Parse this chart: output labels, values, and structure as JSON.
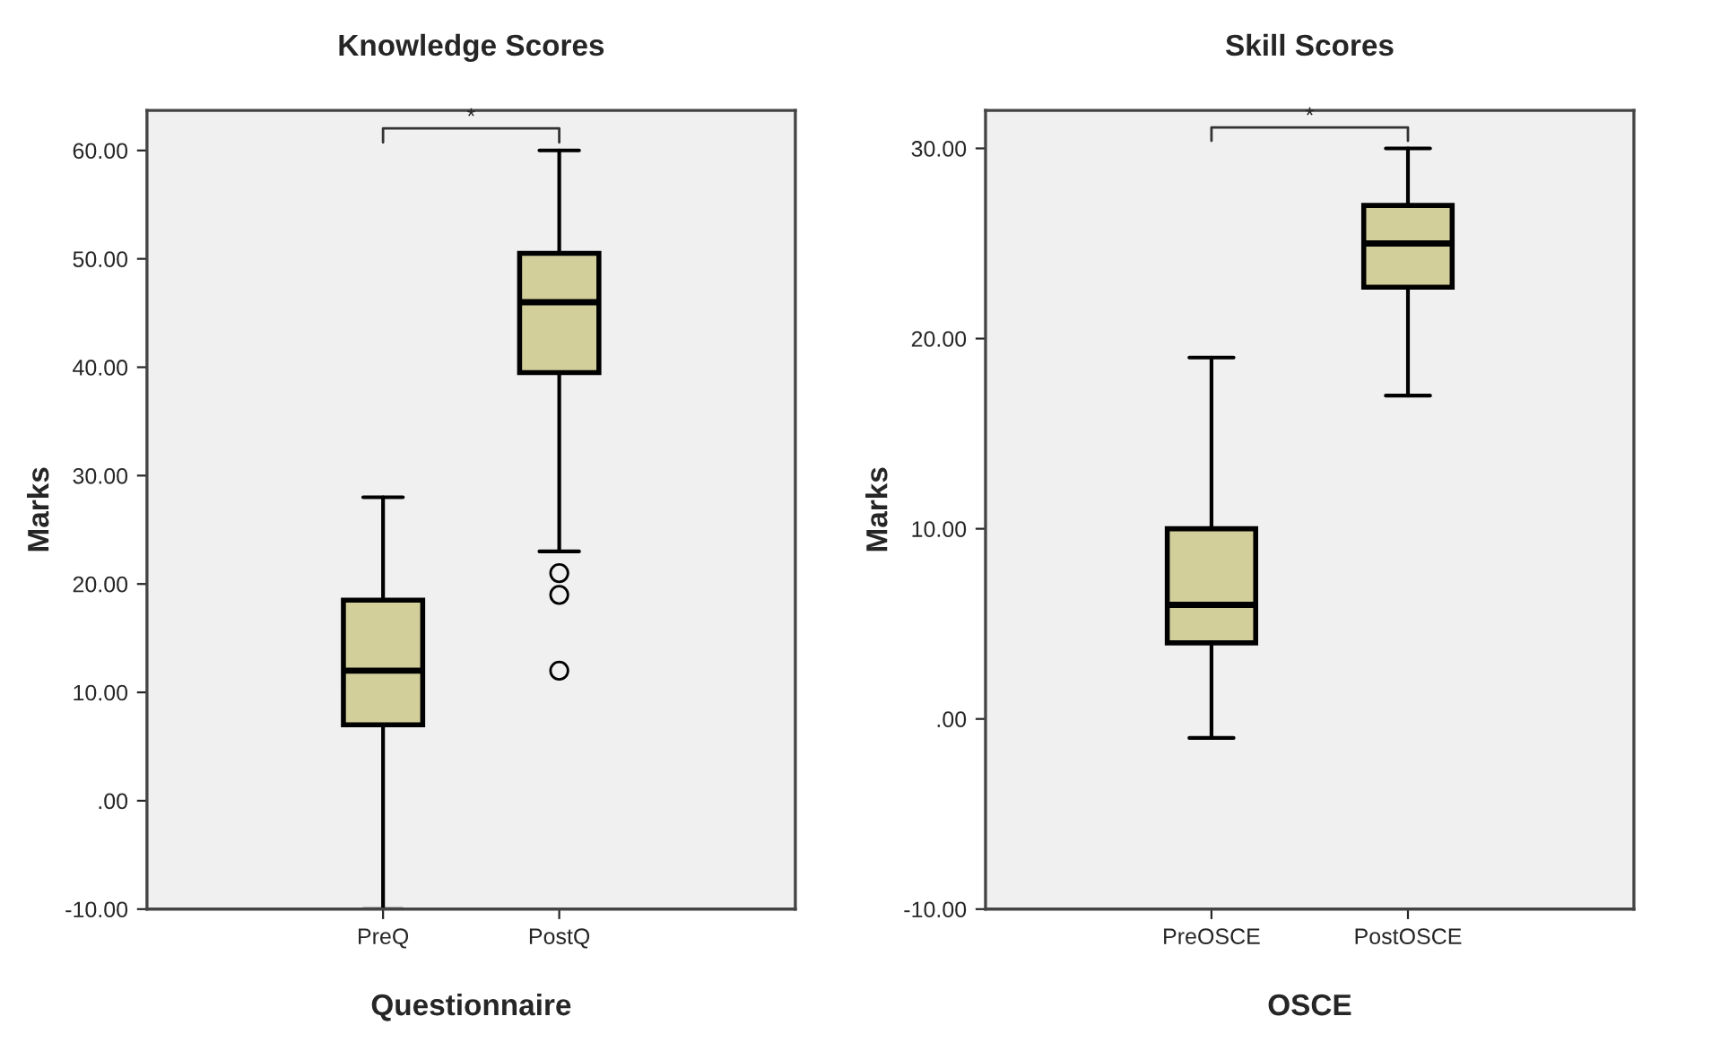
{
  "chart_data": [
    {
      "type": "box",
      "title": "Knowledge Scores",
      "xlabel": "Questionnaire",
      "ylabel": "Marks",
      "categories": [
        "PreQ",
        "PostQ"
      ],
      "color": "#d3cf9a",
      "boxes": [
        {
          "low": -10,
          "q1": 7,
          "median": 12,
          "q3": 18.5,
          "high": 28
        },
        {
          "low": 23,
          "q1": 39.5,
          "median": 46,
          "q3": 50.5,
          "high": 60,
          "outliers": [
            21,
            19,
            12
          ]
        }
      ],
      "ylim": [
        -10,
        63.7
      ],
      "yticks": [
        {
          "value": -10,
          "label": "-10.00"
        },
        {
          "value": 0,
          "label": ".00"
        },
        {
          "value": 10,
          "label": "10.00"
        },
        {
          "value": 20,
          "label": "20.00"
        },
        {
          "value": 30,
          "label": "30.00"
        },
        {
          "value": 40,
          "label": "40.00"
        },
        {
          "value": 50,
          "label": "50.00"
        },
        {
          "value": 60,
          "label": "60.00"
        }
      ],
      "annotations": [
        "*"
      ],
      "grid": false
    },
    {
      "type": "box",
      "title": "Skill Scores",
      "xlabel": "OSCE",
      "ylabel": "Marks",
      "categories": [
        "PreOSCE",
        "PostOSCE"
      ],
      "color": "#d3cf9a",
      "boxes": [
        {
          "low": -1,
          "q1": 4,
          "median": 6,
          "q3": 10,
          "high": 19
        },
        {
          "low": 17,
          "q1": 22.7,
          "median": 25,
          "q3": 27,
          "high": 30
        }
      ],
      "ylim": [
        -10,
        32
      ],
      "yticks": [
        {
          "value": -10,
          "label": "-10.00"
        },
        {
          "value": 0,
          "label": ".00"
        },
        {
          "value": 10,
          "label": "10.00"
        },
        {
          "value": 20,
          "label": "20.00"
        },
        {
          "value": 30,
          "label": "30.00"
        }
      ],
      "annotations": [
        "*"
      ],
      "grid": false
    }
  ]
}
